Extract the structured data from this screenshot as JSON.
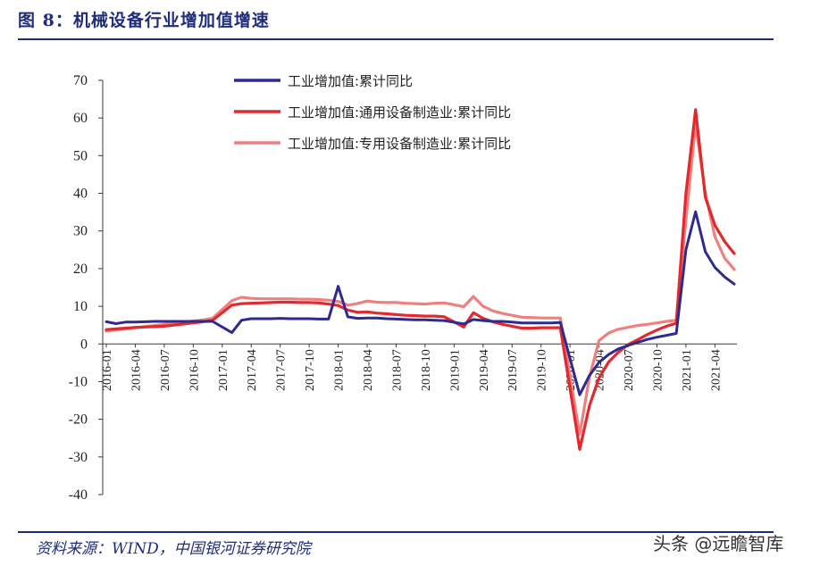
{
  "figure": {
    "title": "图 8：机械设备行业增加值增速",
    "source": "资料来源：WIND，中国银河证券研究院",
    "watermark": "头条 @远瞻智库"
  },
  "colors": {
    "header": "#1f2d7a",
    "series": [
      "#2e2a8f",
      "#e02a2e",
      "#f08080"
    ]
  },
  "chart_data": {
    "type": "line",
    "title": "",
    "xlabel": "",
    "ylabel": "",
    "ylim": [
      -40,
      70
    ],
    "yticks": [
      70,
      60,
      50,
      40,
      30,
      20,
      10,
      0,
      -10,
      -20,
      -30,
      -40
    ],
    "xtick_labels": [
      "2016-01",
      "2016-04",
      "2016-07",
      "2016-10",
      "2017-01",
      "2017-04",
      "2017-07",
      "2017-10",
      "2018-01",
      "2018-04",
      "2018-07",
      "2018-10",
      "2019-01",
      "2019-04",
      "2019-07",
      "2019-10",
      "2020-01",
      "2020-04",
      "2020-07",
      "2020-10",
      "2021-01",
      "2021-04"
    ],
    "grid": false,
    "legend_position": "top-center",
    "series": [
      {
        "name": "工业增加值:累计同比",
        "points": [
          [
            "2016-01",
            5.9
          ],
          [
            "2016-02",
            5.4
          ],
          [
            "2016-03",
            5.8
          ],
          [
            "2016-04",
            5.8
          ],
          [
            "2016-05",
            5.9
          ],
          [
            "2016-06",
            6.0
          ],
          [
            "2016-07",
            6.0
          ],
          [
            "2016-08",
            6.0
          ],
          [
            "2016-09",
            6.0
          ],
          [
            "2016-10",
            6.0
          ],
          [
            "2016-11",
            6.0
          ],
          [
            "2016-12",
            6.0
          ],
          [
            "2017-02",
            3.0
          ],
          [
            "2017-03",
            6.3
          ],
          [
            "2017-04",
            6.7
          ],
          [
            "2017-05",
            6.7
          ],
          [
            "2017-06",
            6.7
          ],
          [
            "2017-07",
            6.8
          ],
          [
            "2017-08",
            6.7
          ],
          [
            "2017-09",
            6.7
          ],
          [
            "2017-10",
            6.7
          ],
          [
            "2017-11",
            6.6
          ],
          [
            "2017-12",
            6.6
          ],
          [
            "2018-01",
            15.3
          ],
          [
            "2018-02",
            7.2
          ],
          [
            "2018-03",
            6.8
          ],
          [
            "2018-04",
            6.9
          ],
          [
            "2018-05",
            6.9
          ],
          [
            "2018-06",
            6.7
          ],
          [
            "2018-07",
            6.6
          ],
          [
            "2018-08",
            6.5
          ],
          [
            "2018-09",
            6.4
          ],
          [
            "2018-10",
            6.4
          ],
          [
            "2018-11",
            6.3
          ],
          [
            "2018-12",
            6.2
          ],
          [
            "2019-02",
            5.3
          ],
          [
            "2019-03",
            6.5
          ],
          [
            "2019-04",
            6.2
          ],
          [
            "2019-05",
            6.0
          ],
          [
            "2019-06",
            6.0
          ],
          [
            "2019-07",
            5.8
          ],
          [
            "2019-08",
            5.6
          ],
          [
            "2019-09",
            5.6
          ],
          [
            "2019-10",
            5.6
          ],
          [
            "2019-11",
            5.6
          ],
          [
            "2019-12",
            5.7
          ],
          [
            "2020-02",
            -13.5
          ],
          [
            "2020-03",
            -8.4
          ],
          [
            "2020-04",
            -4.9
          ],
          [
            "2020-05",
            -2.8
          ],
          [
            "2020-06",
            -1.3
          ],
          [
            "2020-07",
            -0.4
          ],
          [
            "2020-08",
            0.4
          ],
          [
            "2020-09",
            1.2
          ],
          [
            "2020-10",
            1.8
          ],
          [
            "2020-11",
            2.3
          ],
          [
            "2020-12",
            2.8
          ],
          [
            "2021-01",
            25.0
          ],
          [
            "2021-02",
            35.1
          ],
          [
            "2021-03",
            24.5
          ],
          [
            "2021-04",
            20.3
          ],
          [
            "2021-05",
            17.8
          ],
          [
            "2021-06",
            15.9
          ]
        ]
      },
      {
        "name": "工业增加值:通用设备制造业:累计同比",
        "points": [
          [
            "2016-01",
            3.8
          ],
          [
            "2016-02",
            4.0
          ],
          [
            "2016-03",
            4.2
          ],
          [
            "2016-04",
            4.4
          ],
          [
            "2016-05",
            4.5
          ],
          [
            "2016-06",
            4.6
          ],
          [
            "2016-07",
            4.7
          ],
          [
            "2016-08",
            5.0
          ],
          [
            "2016-09",
            5.3
          ],
          [
            "2016-10",
            5.6
          ],
          [
            "2016-11",
            5.9
          ],
          [
            "2016-12",
            6.3
          ],
          [
            "2017-02",
            10.3
          ],
          [
            "2017-03",
            10.7
          ],
          [
            "2017-04",
            10.8
          ],
          [
            "2017-05",
            10.9
          ],
          [
            "2017-06",
            11.0
          ],
          [
            "2017-07",
            11.1
          ],
          [
            "2017-08",
            11.1
          ],
          [
            "2017-09",
            11.0
          ],
          [
            "2017-10",
            11.0
          ],
          [
            "2017-11",
            10.9
          ],
          [
            "2017-12",
            10.6
          ],
          [
            "2018-01",
            10.2
          ],
          [
            "2018-02",
            9.0
          ],
          [
            "2018-03",
            8.4
          ],
          [
            "2018-04",
            8.5
          ],
          [
            "2018-05",
            8.2
          ],
          [
            "2018-06",
            8.0
          ],
          [
            "2018-07",
            7.8
          ],
          [
            "2018-08",
            7.6
          ],
          [
            "2018-09",
            7.5
          ],
          [
            "2018-10",
            7.4
          ],
          [
            "2018-11",
            7.4
          ],
          [
            "2018-12",
            7.2
          ],
          [
            "2019-02",
            4.5
          ],
          [
            "2019-03",
            8.3
          ],
          [
            "2019-04",
            6.8
          ],
          [
            "2019-05",
            5.9
          ],
          [
            "2019-06",
            5.2
          ],
          [
            "2019-07",
            4.7
          ],
          [
            "2019-08",
            4.2
          ],
          [
            "2019-09",
            4.2
          ],
          [
            "2019-10",
            4.3
          ],
          [
            "2019-11",
            4.3
          ],
          [
            "2019-12",
            4.3
          ],
          [
            "2020-02",
            -28.0
          ],
          [
            "2020-03",
            -16.5
          ],
          [
            "2020-04",
            -9.0
          ],
          [
            "2020-05",
            -4.8
          ],
          [
            "2020-06",
            -2.2
          ],
          [
            "2020-07",
            -0.2
          ],
          [
            "2020-08",
            1.1
          ],
          [
            "2020-09",
            2.5
          ],
          [
            "2020-10",
            3.7
          ],
          [
            "2020-11",
            4.7
          ],
          [
            "2020-12",
            5.5
          ],
          [
            "2021-01",
            40.0
          ],
          [
            "2021-02",
            62.2
          ],
          [
            "2021-03",
            39.0
          ],
          [
            "2021-04",
            31.5
          ],
          [
            "2021-05",
            27.2
          ],
          [
            "2021-06",
            24.0
          ]
        ]
      },
      {
        "name": "工业增加值:专用设备制造业:累计同比",
        "points": [
          [
            "2016-01",
            3.4
          ],
          [
            "2016-02",
            3.7
          ],
          [
            "2016-03",
            4.0
          ],
          [
            "2016-04",
            4.3
          ],
          [
            "2016-05",
            4.6
          ],
          [
            "2016-06",
            4.9
          ],
          [
            "2016-07",
            5.2
          ],
          [
            "2016-08",
            5.5
          ],
          [
            "2016-09",
            5.8
          ],
          [
            "2016-10",
            6.1
          ],
          [
            "2016-11",
            6.4
          ],
          [
            "2016-12",
            6.8
          ],
          [
            "2017-02",
            11.5
          ],
          [
            "2017-03",
            12.4
          ],
          [
            "2017-04",
            12.1
          ],
          [
            "2017-05",
            12.0
          ],
          [
            "2017-06",
            12.0
          ],
          [
            "2017-07",
            12.0
          ],
          [
            "2017-08",
            12.0
          ],
          [
            "2017-09",
            11.9
          ],
          [
            "2017-10",
            11.9
          ],
          [
            "2017-11",
            11.8
          ],
          [
            "2017-12",
            11.6
          ],
          [
            "2018-01",
            11.3
          ],
          [
            "2018-02",
            10.3
          ],
          [
            "2018-03",
            10.7
          ],
          [
            "2018-04",
            11.4
          ],
          [
            "2018-05",
            11.1
          ],
          [
            "2018-06",
            11.0
          ],
          [
            "2018-07",
            11.0
          ],
          [
            "2018-08",
            10.8
          ],
          [
            "2018-09",
            10.7
          ],
          [
            "2018-10",
            10.6
          ],
          [
            "2018-11",
            10.8
          ],
          [
            "2018-12",
            10.9
          ],
          [
            "2019-02",
            9.9
          ],
          [
            "2019-03",
            12.6
          ],
          [
            "2019-04",
            10.0
          ],
          [
            "2019-05",
            8.8
          ],
          [
            "2019-06",
            8.1
          ],
          [
            "2019-07",
            7.6
          ],
          [
            "2019-08",
            7.1
          ],
          [
            "2019-09",
            7.0
          ],
          [
            "2019-10",
            6.9
          ],
          [
            "2019-11",
            6.9
          ],
          [
            "2019-12",
            6.9
          ],
          [
            "2020-02",
            -24.0
          ],
          [
            "2020-03",
            -8.9
          ],
          [
            "2020-04",
            0.9
          ],
          [
            "2020-05",
            2.9
          ],
          [
            "2020-06",
            3.9
          ],
          [
            "2020-07",
            4.4
          ],
          [
            "2020-08",
            4.9
          ],
          [
            "2020-09",
            5.2
          ],
          [
            "2020-10",
            5.6
          ],
          [
            "2020-11",
            6.0
          ],
          [
            "2020-12",
            6.3
          ],
          [
            "2021-01",
            33.0
          ],
          [
            "2021-02",
            58.3
          ],
          [
            "2021-03",
            40.0
          ],
          [
            "2021-04",
            28.5
          ],
          [
            "2021-05",
            22.8
          ],
          [
            "2021-06",
            19.8
          ]
        ]
      }
    ]
  }
}
